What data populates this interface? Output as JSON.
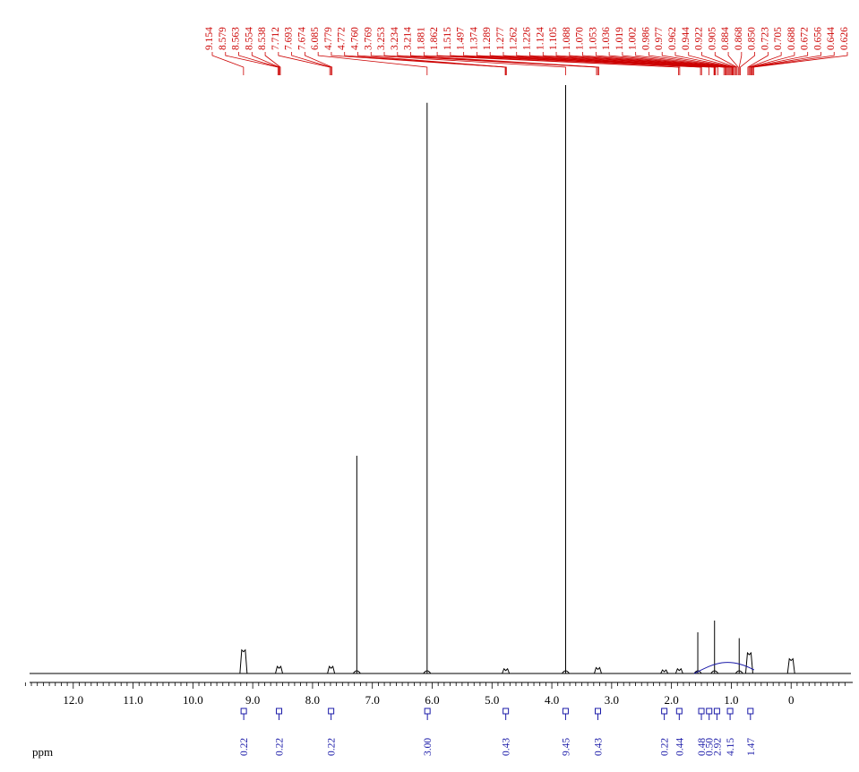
{
  "chart_data": {
    "type": "line",
    "x_unit": "ppm",
    "x_reversed": true,
    "xlim": [
      13.0,
      -1.0
    ],
    "x_tick_labels": [
      "12.0",
      "11.0",
      "10.0",
      "9.0",
      "8.0",
      "7.0",
      "6.0",
      "5.0",
      "4.0",
      "3.0",
      "2.0",
      "1.0",
      "0"
    ],
    "peak_labels": [
      "9.154",
      "8.579",
      "8.563",
      "8.554",
      "8.538",
      "7.712",
      "7.693",
      "7.674",
      "6.085",
      "4.779",
      "4.772",
      "4.760",
      "3.769",
      "3.253",
      "3.234",
      "3.214",
      "1.881",
      "1.862",
      "1.515",
      "1.497",
      "1.374",
      "1.289",
      "1.277",
      "1.262",
      "1.226",
      "1.124",
      "1.105",
      "1.088",
      "1.070",
      "1.053",
      "1.036",
      "1.019",
      "1.002",
      "0.986",
      "0.977",
      "0.962",
      "0.944",
      "0.922",
      "0.905",
      "0.884",
      "0.868",
      "0.850",
      "0.723",
      "0.705",
      "0.688",
      "0.672",
      "0.656",
      "0.644",
      "0.626"
    ],
    "peaks": [
      {
        "ppm": 9.154,
        "height": 0.04
      },
      {
        "ppm": 8.56,
        "height": 0.012
      },
      {
        "ppm": 7.69,
        "height": 0.012
      },
      {
        "ppm": 7.26,
        "height": 0.37
      },
      {
        "ppm": 6.085,
        "height": 0.97
      },
      {
        "ppm": 4.77,
        "height": 0.008
      },
      {
        "ppm": 3.769,
        "height": 1.0
      },
      {
        "ppm": 3.23,
        "height": 0.01
      },
      {
        "ppm": 2.12,
        "height": 0.006
      },
      {
        "ppm": 1.87,
        "height": 0.008
      },
      {
        "ppm": 1.56,
        "height": 0.07
      },
      {
        "ppm": 1.28,
        "height": 0.09
      },
      {
        "ppm": 0.868,
        "height": 0.06
      },
      {
        "ppm": 0.7,
        "height": 0.035
      },
      {
        "ppm": 0.0,
        "height": 0.025
      }
    ],
    "integrals": [
      {
        "ppm": 9.15,
        "label": "0.22"
      },
      {
        "ppm": 8.56,
        "label": "0.22"
      },
      {
        "ppm": 7.69,
        "label": "0.22"
      },
      {
        "ppm": 6.08,
        "label": "3.00"
      },
      {
        "ppm": 4.77,
        "label": "0.43"
      },
      {
        "ppm": 3.77,
        "label": "9.45"
      },
      {
        "ppm": 3.23,
        "label": "0.43"
      },
      {
        "ppm": 2.12,
        "label": "0.22"
      },
      {
        "ppm": 1.87,
        "label": "0.44"
      },
      {
        "ppm": 1.5,
        "label": "0.48"
      },
      {
        "ppm": 1.37,
        "label": "0.50"
      },
      {
        "ppm": 1.24,
        "label": "2.92"
      },
      {
        "ppm": 1.02,
        "label": "4.15"
      },
      {
        "ppm": 0.68,
        "label": "1.47"
      }
    ],
    "colors": {
      "trace": "#000000",
      "peak_labels": "#cc0000",
      "integrals": "#1a1aa8"
    }
  }
}
